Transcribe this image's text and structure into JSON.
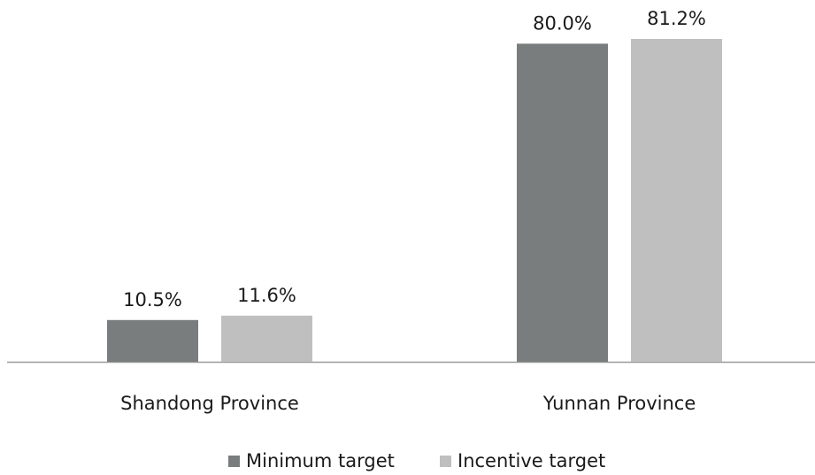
{
  "chart_data": {
    "type": "bar",
    "categories": [
      "Shandong Province",
      "Yunnan Province"
    ],
    "series": [
      {
        "name": "Minimum target",
        "color": "#7a7d7d",
        "values": [
          10.5,
          80.0
        ],
        "value_labels": [
          "10.5%",
          "80.0%"
        ]
      },
      {
        "name": "Incentive target",
        "color": "#bfbfbf",
        "values": [
          11.6,
          81.2
        ],
        "value_labels": [
          "11.6%",
          "81.2%"
        ]
      }
    ],
    "legend": "bottom"
  }
}
